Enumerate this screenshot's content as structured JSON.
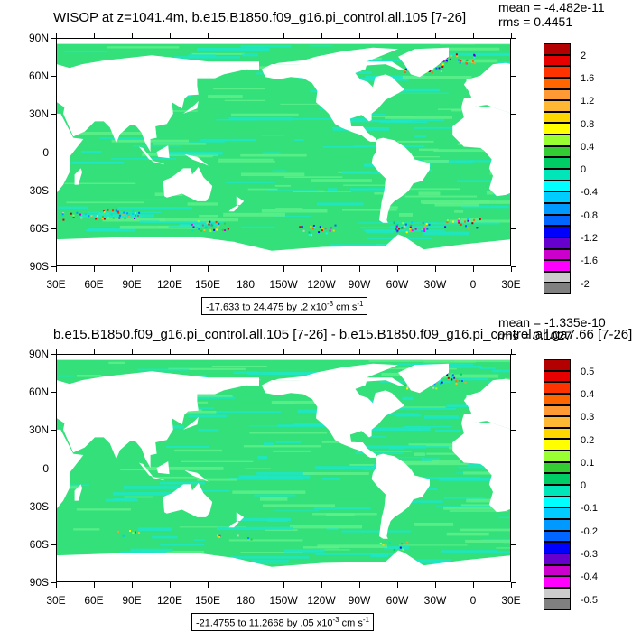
{
  "panels": [
    {
      "title": "WISOP at z=1041.4m, b.e15.B1850.f09_g16.pi_control.all.105 [7-26]",
      "mean": "mean = -4.482e-11",
      "rms": "rms = 0.4451",
      "range": "-17.633 to 24.475 by .2 x10",
      "range_exp": "-3",
      "range_units": " cm s",
      "range_units_exp": "-1"
    },
    {
      "title": "b.e15.B1850.f09_g16.pi_control.all.105 [7-26] - b.e15.B1850.f09_g16.pi_control.all.ga7.66 [7-26]",
      "mean": "mean = -1.335e-10",
      "rms": "rms = 0.1027",
      "range": "-21.4755 to 11.2668 by .05 x10",
      "range_exp": "-3",
      "range_units": " cm s",
      "range_units_exp": "-1"
    }
  ],
  "y_ticks": [
    "90N",
    "60N",
    "30N",
    "0",
    "30S",
    "60S",
    "90S"
  ],
  "x_ticks": [
    "30E",
    "60E",
    "90E",
    "120E",
    "150E",
    "180",
    "150W",
    "120W",
    "90W",
    "60W",
    "30W",
    "0",
    "30E"
  ],
  "colorbars": [
    {
      "labels": [
        "2",
        "1.6",
        "1.2",
        "0.8",
        "0.4",
        "0",
        "-0.4",
        "-0.8",
        "-1.2",
        "-1.6",
        "-2"
      ]
    },
    {
      "labels": [
        "0.5",
        "0.4",
        "0.3",
        "0.2",
        "0.1",
        "0",
        "-0.1",
        "-0.2",
        "-0.3",
        "-0.4",
        "-0.5"
      ]
    }
  ],
  "colors": {
    "palette": [
      "#b30000",
      "#e60000",
      "#ff3300",
      "#ff6600",
      "#ff9933",
      "#ffb833",
      "#ffd700",
      "#ffff00",
      "#99ff33",
      "#33cc33",
      "#00cc66",
      "#00e6b8",
      "#00ffff",
      "#00ccff",
      "#0099ff",
      "#0066ff",
      "#0000ff",
      "#6600cc",
      "#cc00cc",
      "#ff00ff",
      "#cccccc",
      "#808080"
    ],
    "ocean_main": "#33e07a",
    "ocean_alt": "#1ee6c8",
    "land": "#ffffff"
  },
  "chart_data": [
    {
      "type": "heatmap",
      "title": "WISOP at z=1041.4m, b.e15.B1850.f09_g16.pi_control.all.105 [7-26]",
      "x_ticks": [
        "30E",
        "60E",
        "90E",
        "120E",
        "150E",
        "180",
        "150W",
        "120W",
        "90W",
        "60W",
        "30W",
        "0",
        "30E"
      ],
      "y_ticks": [
        "90N",
        "60N",
        "30N",
        "0",
        "30S",
        "60S",
        "90S"
      ],
      "xlim": [
        30,
        390
      ],
      "ylim": [
        -90,
        90
      ],
      "colorbar_levels": [
        2,
        1.6,
        1.2,
        0.8,
        0.4,
        0,
        -0.4,
        -0.8,
        -1.2,
        -1.6,
        -2
      ],
      "mean": -4.482e-11,
      "rms": 0.4451,
      "data_min": -17.633,
      "data_max": 24.475
    },
    {
      "type": "heatmap",
      "title": "b.e15.B1850.f09_g16.pi_control.all.105 [7-26] - b.e15.B1850.f09_g16.pi_control.all.ga7.66 [7-26]",
      "x_ticks": [
        "30E",
        "60E",
        "90E",
        "120E",
        "150E",
        "180",
        "150W",
        "120W",
        "90W",
        "60W",
        "30W",
        "0",
        "30E"
      ],
      "y_ticks": [
        "90N",
        "60N",
        "30N",
        "0",
        "30S",
        "60S",
        "90S"
      ],
      "xlim": [
        30,
        390
      ],
      "ylim": [
        -90,
        90
      ],
      "colorbar_levels": [
        0.5,
        0.4,
        0.3,
        0.2,
        0.1,
        0,
        -0.1,
        -0.2,
        -0.3,
        -0.4,
        -0.5
      ],
      "mean": -1.335e-10,
      "rms": 0.1027,
      "data_min": -21.4755,
      "data_max": 11.2668
    }
  ]
}
